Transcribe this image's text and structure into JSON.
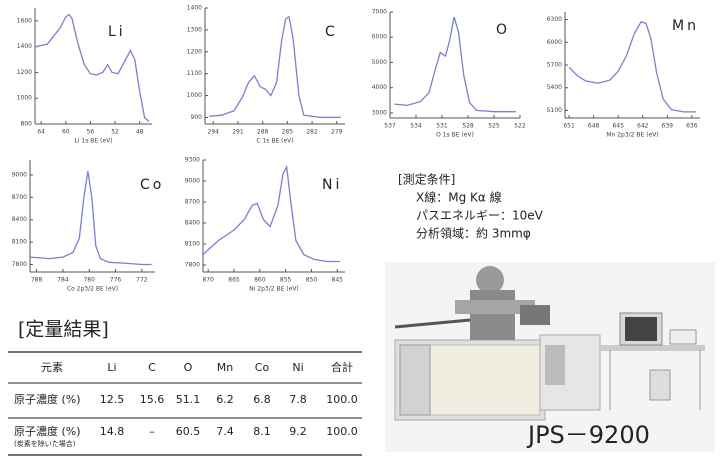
{
  "chart_data": [
    {
      "type": "line",
      "title": "Li",
      "x_label": "Li 1s BE (eV)",
      "color": "#7b7fd0",
      "x": [
        65,
        63,
        61,
        60,
        59.5,
        59,
        58,
        57,
        56,
        55,
        54,
        53.2,
        52.5,
        51.5,
        50.5,
        49.5,
        48.8,
        48,
        47.2,
        46.5
      ],
      "values": [
        1400,
        1420,
        1540,
        1630,
        1650,
        1620,
        1420,
        1260,
        1190,
        1180,
        1200,
        1260,
        1200,
        1190,
        1280,
        1370,
        1300,
        1050,
        850,
        820
      ],
      "xlim": [
        65,
        46
      ],
      "ylim": [
        800,
        1700
      ],
      "xticks": [
        64,
        60,
        56,
        52,
        48
      ],
      "yticks": [
        800,
        1000,
        1200,
        1400,
        1600
      ]
    },
    {
      "type": "line",
      "title": "C",
      "x_label": "C 1s BE (eV)",
      "color": "#7b7fd0",
      "x": [
        294.5,
        293,
        291.5,
        290.5,
        289.7,
        289,
        288.3,
        287.7,
        287,
        286.3,
        285.7,
        285.2,
        284.8,
        284.3,
        283.6,
        283,
        281,
        278.5
      ],
      "values": [
        905,
        910,
        930,
        990,
        1060,
        1090,
        1040,
        1030,
        1000,
        1060,
        1250,
        1350,
        1360,
        1260,
        1000,
        910,
        900,
        900
      ],
      "xlim": [
        295,
        278
      ],
      "ylim": [
        870,
        1400
      ],
      "xticks": [
        294,
        291,
        288,
        285,
        282,
        279
      ],
      "yticks": [
        900,
        1000,
        1100,
        1200,
        1300,
        1400
      ]
    },
    {
      "type": "line",
      "title": "O",
      "x_label": "O 1s BE (eV)",
      "color": "#7b7fd0",
      "x": [
        536.5,
        535,
        533.5,
        532.5,
        531.8,
        531.2,
        530.6,
        530.1,
        529.6,
        529.1,
        528.5,
        527.8,
        527,
        525,
        522.5
      ],
      "values": [
        3350,
        3300,
        3450,
        3800,
        4700,
        5400,
        5250,
        5900,
        6800,
        6200,
        4500,
        3400,
        3100,
        3050,
        3050
      ],
      "xlim": [
        537,
        522
      ],
      "ylim": [
        2800,
        7000
      ],
      "xticks": [
        537,
        534,
        531,
        528,
        525,
        522
      ],
      "yticks": [
        3000,
        4000,
        5000,
        6000,
        7000
      ]
    },
    {
      "type": "line",
      "title": "Mn",
      "x_label": "Mn 2p3/2 BE (eV)",
      "color": "#7b7fd0",
      "x": [
        651,
        650,
        649,
        647.5,
        646,
        645,
        644,
        643,
        642.2,
        641.6,
        641,
        640.3,
        639.5,
        638.5,
        637,
        635.5
      ],
      "values": [
        5670,
        5560,
        5490,
        5460,
        5500,
        5620,
        5820,
        6120,
        6270,
        6250,
        6050,
        5600,
        5250,
        5110,
        5080,
        5080
      ],
      "xlim": [
        651.5,
        635
      ],
      "ylim": [
        5000,
        6400
      ],
      "xticks": [
        651,
        648,
        645,
        642,
        639,
        636
      ],
      "yticks": [
        5100,
        5400,
        5700,
        6000,
        6300
      ]
    },
    {
      "type": "line",
      "title": "Co",
      "x_label": "Co 2p3/2 BE (eV)",
      "color": "#7b7fd0",
      "x": [
        789,
        786,
        784,
        782.5,
        781.5,
        780.8,
        780.2,
        779.6,
        779,
        778.3,
        777,
        775,
        772,
        770.5
      ],
      "values": [
        7900,
        7880,
        7900,
        7960,
        8150,
        8700,
        9050,
        8700,
        8050,
        7880,
        7830,
        7820,
        7800,
        7800
      ],
      "xlim": [
        789,
        770
      ],
      "ylim": [
        7700,
        9200
      ],
      "xticks": [
        788,
        784,
        780,
        776,
        772
      ],
      "yticks": [
        7800,
        8100,
        8400,
        8700,
        9000
      ]
    },
    {
      "type": "line",
      "title": "Ni",
      "x_label": "Ni 2p3/2 BE (eV)",
      "color": "#7b7fd0",
      "x": [
        871,
        868,
        865,
        863,
        861.5,
        860.5,
        859.3,
        858,
        856.5,
        855.5,
        854.8,
        854,
        853,
        851.5,
        849.5,
        847,
        844.5
      ],
      "values": [
        7950,
        8150,
        8300,
        8450,
        8650,
        8680,
        8450,
        8350,
        8650,
        9100,
        9200,
        8700,
        8150,
        7950,
        7880,
        7850,
        7850
      ],
      "xlim": [
        871,
        843.5
      ],
      "ylim": [
        7700,
        9300
      ],
      "xticks": [
        870,
        865,
        860,
        855,
        850,
        845
      ],
      "yticks": [
        7800,
        8100,
        8400,
        8700,
        9000,
        9300
      ]
    }
  ],
  "conditions": {
    "title": "[測定条件]",
    "lines": [
      "X線：Mg Kα 線",
      "パスエネルギー：10eV",
      "分析領域：約 3mmφ"
    ]
  },
  "results": {
    "title": "[定量結果]",
    "header": [
      "元素",
      "Li",
      "C",
      "O",
      "Mn",
      "Co",
      "Ni",
      "合計"
    ],
    "rows": [
      {
        "label": "原子濃度 (%)",
        "cells": [
          "12.5",
          "15.6",
          "51.1",
          "6.2",
          "6.8",
          "7.8",
          "100.0"
        ]
      },
      {
        "label": "原子濃度 (%)",
        "note": "(炭素を除いた場合)",
        "cells": [
          "14.8",
          "–",
          "60.5",
          "7.4",
          "8.1",
          "9.2",
          "100.0"
        ]
      }
    ]
  },
  "photo_caption": "JPS－9200"
}
